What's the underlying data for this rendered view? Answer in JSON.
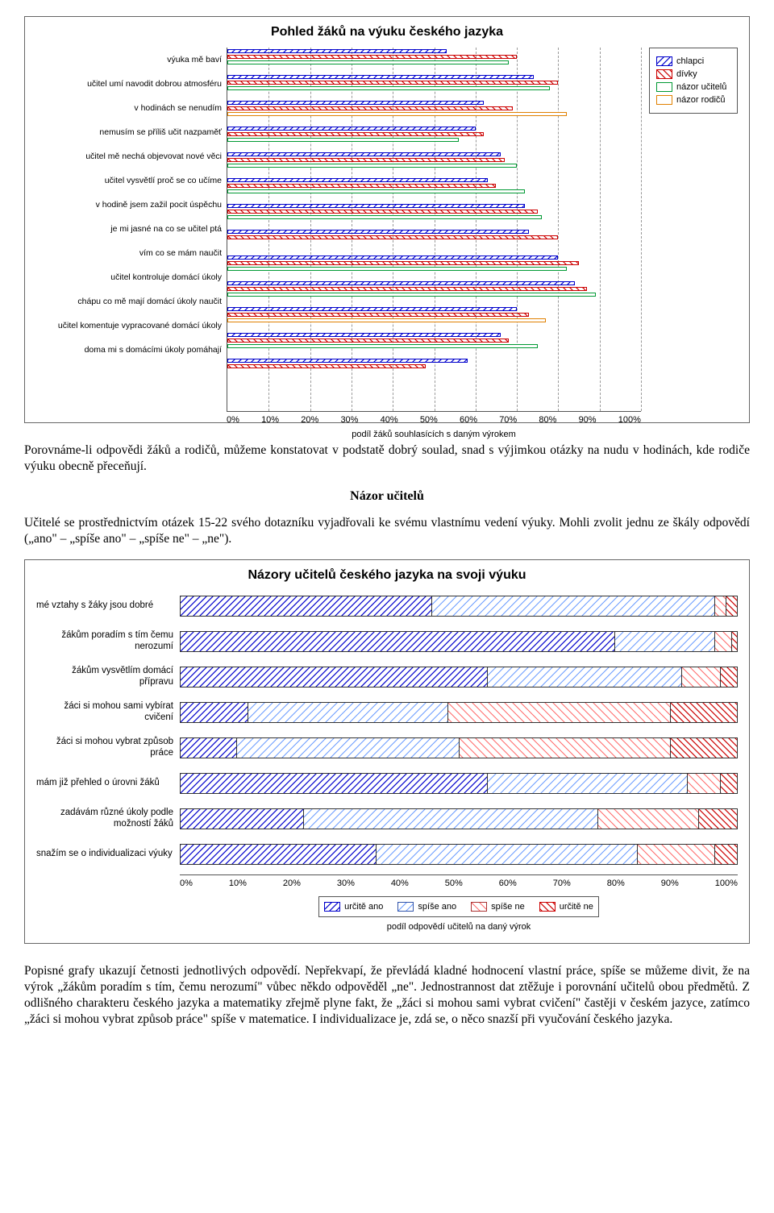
{
  "chart1": {
    "title": "Pohled žáků na výuku českého jazyka",
    "title_fontsize": 12,
    "type": "grouped-horizontal-bar",
    "background_color": "#ffffff",
    "grid_color_dashed": "#999999",
    "xlim": [
      0,
      100
    ],
    "xtick_step": 10,
    "xtick_labels": [
      "0%",
      "10%",
      "20%",
      "30%",
      "40%",
      "50%",
      "60%",
      "70%",
      "80%",
      "90%",
      "100%"
    ],
    "xaxis_label": "podíl žáků souhlasících s daným výrokem",
    "label_fontsize": 10,
    "series": [
      {
        "key": "chlapci",
        "label": "chlapci",
        "pattern": "hatch-blue",
        "color": "#0000cc"
      },
      {
        "key": "divky",
        "label": "dívky",
        "pattern": "hatch-red",
        "color": "#cc0000"
      },
      {
        "key": "ucitelu",
        "label": "názor učitelů",
        "pattern": "outline-green",
        "color": "#009933"
      },
      {
        "key": "rodicu",
        "label": "názor rodičů",
        "pattern": "outline-orange",
        "color": "#e08000"
      }
    ],
    "categories": [
      {
        "label": "výuka mě baví",
        "values": {
          "chlapci": 53,
          "divky": 70,
          "ucitelu": 68,
          "rodicu": null
        }
      },
      {
        "label": "učitel umí navodit dobrou atmosféru",
        "values": {
          "chlapci": 74,
          "divky": 80,
          "ucitelu": 78,
          "rodicu": null
        }
      },
      {
        "label": "v hodinách se nenudím",
        "values": {
          "chlapci": 62,
          "divky": 69,
          "ucitelu": null,
          "rodicu": 82
        }
      },
      {
        "label": "nemusím se příliš učit nazpaměť",
        "values": {
          "chlapci": 60,
          "divky": 62,
          "ucitelu": 56,
          "rodicu": null
        }
      },
      {
        "label": "učitel mě nechá objevovat nové věci",
        "values": {
          "chlapci": 66,
          "divky": 67,
          "ucitelu": 70,
          "rodicu": null
        }
      },
      {
        "label": "učitel vysvětlí proč se co učíme",
        "values": {
          "chlapci": 63,
          "divky": 65,
          "ucitelu": 72,
          "rodicu": null
        }
      },
      {
        "label": "v hodině jsem zažil pocit úspěchu",
        "values": {
          "chlapci": 72,
          "divky": 75,
          "ucitelu": 76,
          "rodicu": null
        }
      },
      {
        "label": "je mi jasné na co se učitel ptá",
        "values": {
          "chlapci": 73,
          "divky": 80,
          "ucitelu": null,
          "rodicu": null
        }
      },
      {
        "label": "vím co se mám naučit",
        "values": {
          "chlapci": 80,
          "divky": 85,
          "ucitelu": 82,
          "rodicu": null
        }
      },
      {
        "label": "učitel kontroluje domácí úkoly",
        "values": {
          "chlapci": 84,
          "divky": 87,
          "ucitelu": 89,
          "rodicu": null
        }
      },
      {
        "label": "chápu co mě mají domácí úkoly naučit",
        "values": {
          "chlapci": 70,
          "divky": 73,
          "ucitelu": null,
          "rodicu": 77
        }
      },
      {
        "label": "učitel komentuje vypracované domácí úkoly",
        "values": {
          "chlapci": 66,
          "divky": 68,
          "ucitelu": 75,
          "rodicu": null
        }
      },
      {
        "label": "doma mi s domácími úkoly pomáhají",
        "values": {
          "chlapci": 58,
          "divky": 48,
          "ucitelu": null,
          "rodicu": null
        }
      }
    ]
  },
  "para1": "Porovnáme-li odpovědi žáků a rodičů, můžeme konstatovat v podstatě dobrý soulad, snad s výjimkou otázky na nudu v hodinách, kde rodiče výuku obecně přeceňují.",
  "section_heading": "Názor učitelů",
  "para2": "Učitelé se prostřednictvím otázek 15-22 svého dotazníku vyjadřovali ke svému vlastnímu vedení výuky. Mohli zvolit jednu ze škály odpovědí („ano\" – „spíše ano\" – „spíše ne\" – „ne\").",
  "chart2": {
    "title": "Názory učitelů českého jazyka na svoji výuku",
    "title_fontsize": 12,
    "type": "stacked-horizontal-bar",
    "background_color": "#ffffff",
    "xlim": [
      0,
      100
    ],
    "xtick_step": 10,
    "xtick_labels": [
      "0%",
      "10%",
      "20%",
      "30%",
      "40%",
      "50%",
      "60%",
      "70%",
      "80%",
      "90%",
      "100%"
    ],
    "xaxis_label": "podíl odpovědí učitelů na daný výrok",
    "segments": [
      {
        "key": "ano",
        "label": "určitě ano",
        "pattern": "hatch-blue",
        "color": "#0000cc"
      },
      {
        "key": "spise_ano",
        "label": "spíše ano",
        "pattern": "hatch-blue-light",
        "color": "#6699ff"
      },
      {
        "key": "spise_ne",
        "label": "spíše ne",
        "pattern": "hatch-red-light",
        "color": "#ff6666"
      },
      {
        "key": "ne",
        "label": "určitě ne",
        "pattern": "hatch-red",
        "color": "#cc0000"
      }
    ],
    "rows": [
      {
        "label": "mé vztahy s žáky jsou dobré",
        "values": {
          "ano": 45,
          "spise_ano": 51,
          "spise_ne": 2,
          "ne": 2
        }
      },
      {
        "label": "žákům poradím s tím čemu nerozumí",
        "values": {
          "ano": 78,
          "spise_ano": 18,
          "spise_ne": 3,
          "ne": 1
        }
      },
      {
        "label": "žákům vysvětlím domácí přípravu",
        "values": {
          "ano": 55,
          "spise_ano": 35,
          "spise_ne": 7,
          "ne": 3
        }
      },
      {
        "label": "žáci si mohou sami vybírat cvičení",
        "values": {
          "ano": 12,
          "spise_ano": 36,
          "spise_ne": 40,
          "ne": 12
        }
      },
      {
        "label": "žáci si mohou vybrat způsob práce",
        "values": {
          "ano": 10,
          "spise_ano": 40,
          "spise_ne": 38,
          "ne": 12
        }
      },
      {
        "label": "mám již přehled o úrovni žáků",
        "values": {
          "ano": 55,
          "spise_ano": 36,
          "spise_ne": 6,
          "ne": 3
        }
      },
      {
        "label": "zadávám různé úkoly podle možností žáků",
        "values": {
          "ano": 22,
          "spise_ano": 53,
          "spise_ne": 18,
          "ne": 7
        }
      },
      {
        "label": "snažím se o individualizaci výuky",
        "values": {
          "ano": 35,
          "spise_ano": 47,
          "spise_ne": 14,
          "ne": 4
        }
      }
    ]
  },
  "para3": "Popisné grafy ukazují četnosti jednotlivých odpovědí. Nepřekvapí, že převládá kladné hodnocení vlastní práce, spíše se můžeme divit, že na výrok „žákům poradím s tím, čemu nerozumí\" vůbec někdo odpověděl „ne\". Jednostrannost dat ztěžuje i porovnání učitelů obou předmětů. Z odlišného charakteru českého jazyka a matematiky zřejmě plyne fakt, že „žáci si mohou sami vybrat cvičení\" častěji v českém jazyce, zatímco „žáci si mohou vybrat způsob práce\" spíše v matematice. I individualizace je, zdá se, o něco snazší při vyučování českého jazyka."
}
